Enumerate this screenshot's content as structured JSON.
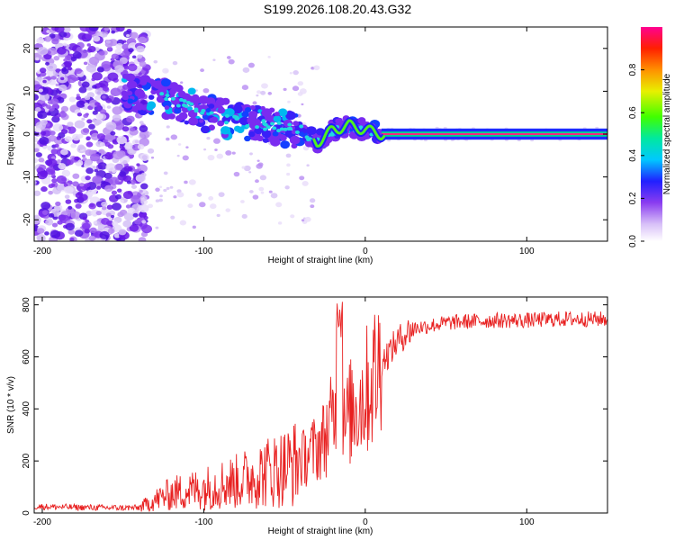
{
  "title": "S199.2026.108.20.43.G32",
  "chart_data": [
    {
      "type": "heatmap",
      "xlabel": "Height of straight line (km)",
      "ylabel": "Frequency (Hz)",
      "xlim": [
        -205,
        150
      ],
      "ylim": [
        -25,
        25
      ],
      "xticks": [
        -200,
        -100,
        0,
        100
      ],
      "yticks": [
        -20,
        -10,
        0,
        10,
        20
      ],
      "colorbar": {
        "label": "Normalized spectral amplitude",
        "range": [
          0.0,
          1.0
        ],
        "ticks": [
          "0.0",
          "0.2",
          "0.4",
          "0.6",
          "0.8"
        ],
        "tick_values": [
          0.0,
          0.2,
          0.4,
          0.6,
          0.8
        ],
        "colors": [
          "#ffffff",
          "#c8a8f0",
          "#7a2cf0",
          "#2020ff",
          "#00c8ff",
          "#00e070",
          "#40ff00",
          "#e8f000",
          "#ff9000",
          "#ff2000",
          "#ff0090"
        ]
      },
      "ridge": {
        "description_points_x": [
          -145,
          -120,
          -100,
          -80,
          -60,
          -40,
          -30,
          -20,
          -10,
          0,
          10,
          150
        ],
        "description_points_y": [
          10,
          8,
          5,
          3,
          2,
          1,
          -2,
          1,
          2,
          1,
          0,
          0
        ]
      }
    },
    {
      "type": "line",
      "xlabel": "Height of straight line (km)",
      "ylabel": "SNR (10 * v/v)",
      "xlim": [
        -205,
        150
      ],
      "ylim": [
        0,
        830
      ],
      "xticks": [
        -200,
        -100,
        0,
        100
      ],
      "yticks": [
        0,
        200,
        400,
        600,
        800
      ],
      "series": [
        {
          "name": "SNR",
          "color": "#e82020",
          "x": [
            -205,
            -180,
            -160,
            -140,
            -130,
            -120,
            -110,
            -100,
            -90,
            -80,
            -70,
            -60,
            -50,
            -40,
            -35,
            -30,
            -25,
            -20,
            -17,
            -15,
            -12,
            -10,
            -5,
            0,
            5,
            10,
            15,
            20,
            25,
            30,
            40,
            50,
            60,
            80,
            100,
            120,
            150
          ],
          "values": [
            25,
            22,
            20,
            20,
            50,
            75,
            85,
            95,
            110,
            120,
            140,
            160,
            175,
            200,
            230,
            250,
            290,
            360,
            400,
            300,
            340,
            380,
            420,
            460,
            520,
            580,
            620,
            660,
            690,
            710,
            720,
            730,
            735,
            740,
            740,
            745,
            745
          ]
        }
      ]
    }
  ]
}
